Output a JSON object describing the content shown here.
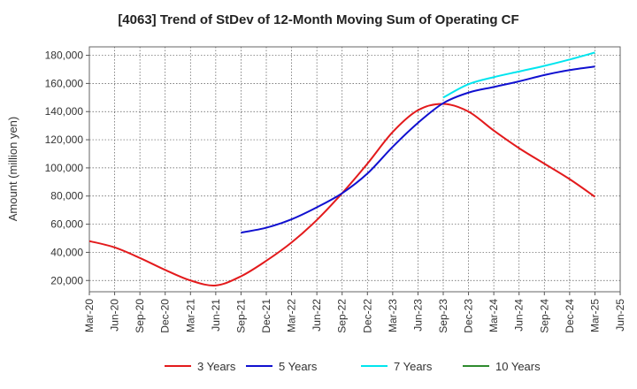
{
  "title": "[4063]  Trend of StDev of 12-Month Moving Sum of Operating CF",
  "chart_data": {
    "type": "line",
    "title": "[4063]  Trend of StDev of 12-Month Moving Sum of Operating CF",
    "xlabel": "",
    "ylabel": "Amount (million yen)",
    "ylim": [
      12000,
      186000
    ],
    "yticks": [
      20000,
      40000,
      60000,
      80000,
      100000,
      120000,
      140000,
      160000,
      180000
    ],
    "ytick_labels": [
      "20,000",
      "40,000",
      "60,000",
      "80,000",
      "100,000",
      "120,000",
      "140,000",
      "160,000",
      "180,000"
    ],
    "xtick_labels": [
      "Mar-20",
      "Jun-20",
      "Sep-20",
      "Dec-20",
      "Mar-21",
      "Jun-21",
      "Sep-21",
      "Dec-21",
      "Mar-22",
      "Jun-22",
      "Sep-22",
      "Dec-22",
      "Mar-23",
      "Jun-23",
      "Sep-23",
      "Dec-23",
      "Mar-24",
      "Jun-24",
      "Sep-24",
      "Dec-24",
      "Mar-25",
      "Jun-25"
    ],
    "grid": true,
    "legend_position": "bottom",
    "series": [
      {
        "name": "3 Years",
        "color": "#e31a1c",
        "x": [
          "Mar-20",
          "Jun-20",
          "Sep-20",
          "Dec-20",
          "Mar-21",
          "Jun-21",
          "Sep-21",
          "Dec-21",
          "Mar-22",
          "Jun-22",
          "Sep-22",
          "Dec-22",
          "Mar-23",
          "Jun-23",
          "Sep-23",
          "Dec-23",
          "Mar-24",
          "Jun-24",
          "Sep-24",
          "Dec-24",
          "Mar-25"
        ],
        "values": [
          48000,
          43500,
          36000,
          27500,
          20000,
          16500,
          23000,
          34000,
          47000,
          63000,
          82000,
          103000,
          125500,
          141000,
          145500,
          140000,
          126500,
          114000,
          103000,
          92000,
          79500
        ]
      },
      {
        "name": "5 Years",
        "color": "#1010d0",
        "x": [
          "Sep-21",
          "Dec-21",
          "Mar-22",
          "Jun-22",
          "Sep-22",
          "Dec-22",
          "Mar-23",
          "Jun-23",
          "Sep-23",
          "Dec-23",
          "Mar-24",
          "Jun-24",
          "Sep-24",
          "Dec-24",
          "Mar-25"
        ],
        "values": [
          54000,
          57500,
          63500,
          72000,
          82000,
          96000,
          115000,
          132000,
          146000,
          153500,
          157500,
          161500,
          166000,
          169500,
          172000
        ]
      },
      {
        "name": "7 Years",
        "color": "#00e5ee",
        "x": [
          "Sep-23",
          "Dec-23",
          "Mar-24",
          "Jun-24",
          "Sep-24",
          "Dec-24",
          "Mar-25"
        ],
        "values": [
          150000,
          159500,
          164500,
          168500,
          172500,
          177000,
          182000
        ]
      },
      {
        "name": "10 Years",
        "color": "#2e8b2e",
        "x": [],
        "values": []
      }
    ]
  }
}
